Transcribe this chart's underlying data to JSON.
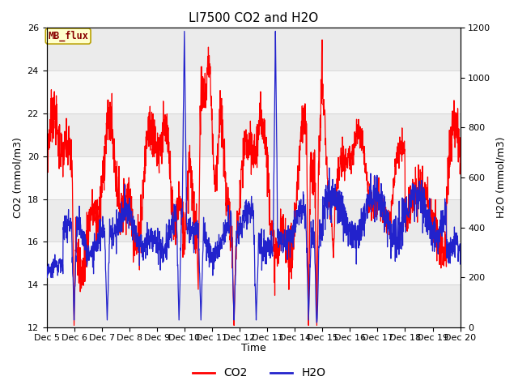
{
  "title": "LI7500 CO2 and H2O",
  "xlabel": "Time",
  "ylabel_left": "CO2 (mmol/m3)",
  "ylabel_right": "H2O (mmol/m3)",
  "co2_color": "#ff0000",
  "h2o_color": "#2222cc",
  "ylim_left": [
    12,
    26
  ],
  "ylim_right": [
    0,
    1200
  ],
  "background_color": "#ffffff",
  "band_color_even": "#ebebeb",
  "band_color_odd": "#f8f8f8",
  "mb_flux_label": "MB_flux",
  "mb_flux_bg": "#ffffcc",
  "mb_flux_border": "#b8a000",
  "mb_flux_text_color": "#880000",
  "legend_co2": "CO2",
  "legend_h2o": "H2O",
  "x_start_day": 5,
  "x_end_day": 20,
  "n_points": 2000,
  "title_fontsize": 11,
  "axis_label_fontsize": 9,
  "tick_fontsize": 8,
  "legend_fontsize": 10,
  "co2_yticks": [
    12,
    14,
    16,
    18,
    20,
    22,
    24,
    26
  ],
  "h2o_yticks": [
    0,
    200,
    400,
    600,
    800,
    1000,
    1200
  ],
  "x_ticks": [
    5,
    6,
    7,
    8,
    9,
    10,
    11,
    12,
    13,
    14,
    15,
    16,
    17,
    18,
    19,
    20
  ],
  "x_labels": [
    "Dec 5",
    "Dec 6",
    "Dec 7",
    "Dec 8",
    "Dec 9",
    "Dec 10",
    "Dec 11",
    "Dec 12",
    "Dec 13",
    "Dec 14",
    "Dec 15",
    "Dec 16",
    "Dec 17",
    "Dec 18",
    "Dec 19",
    "Dec 20"
  ]
}
